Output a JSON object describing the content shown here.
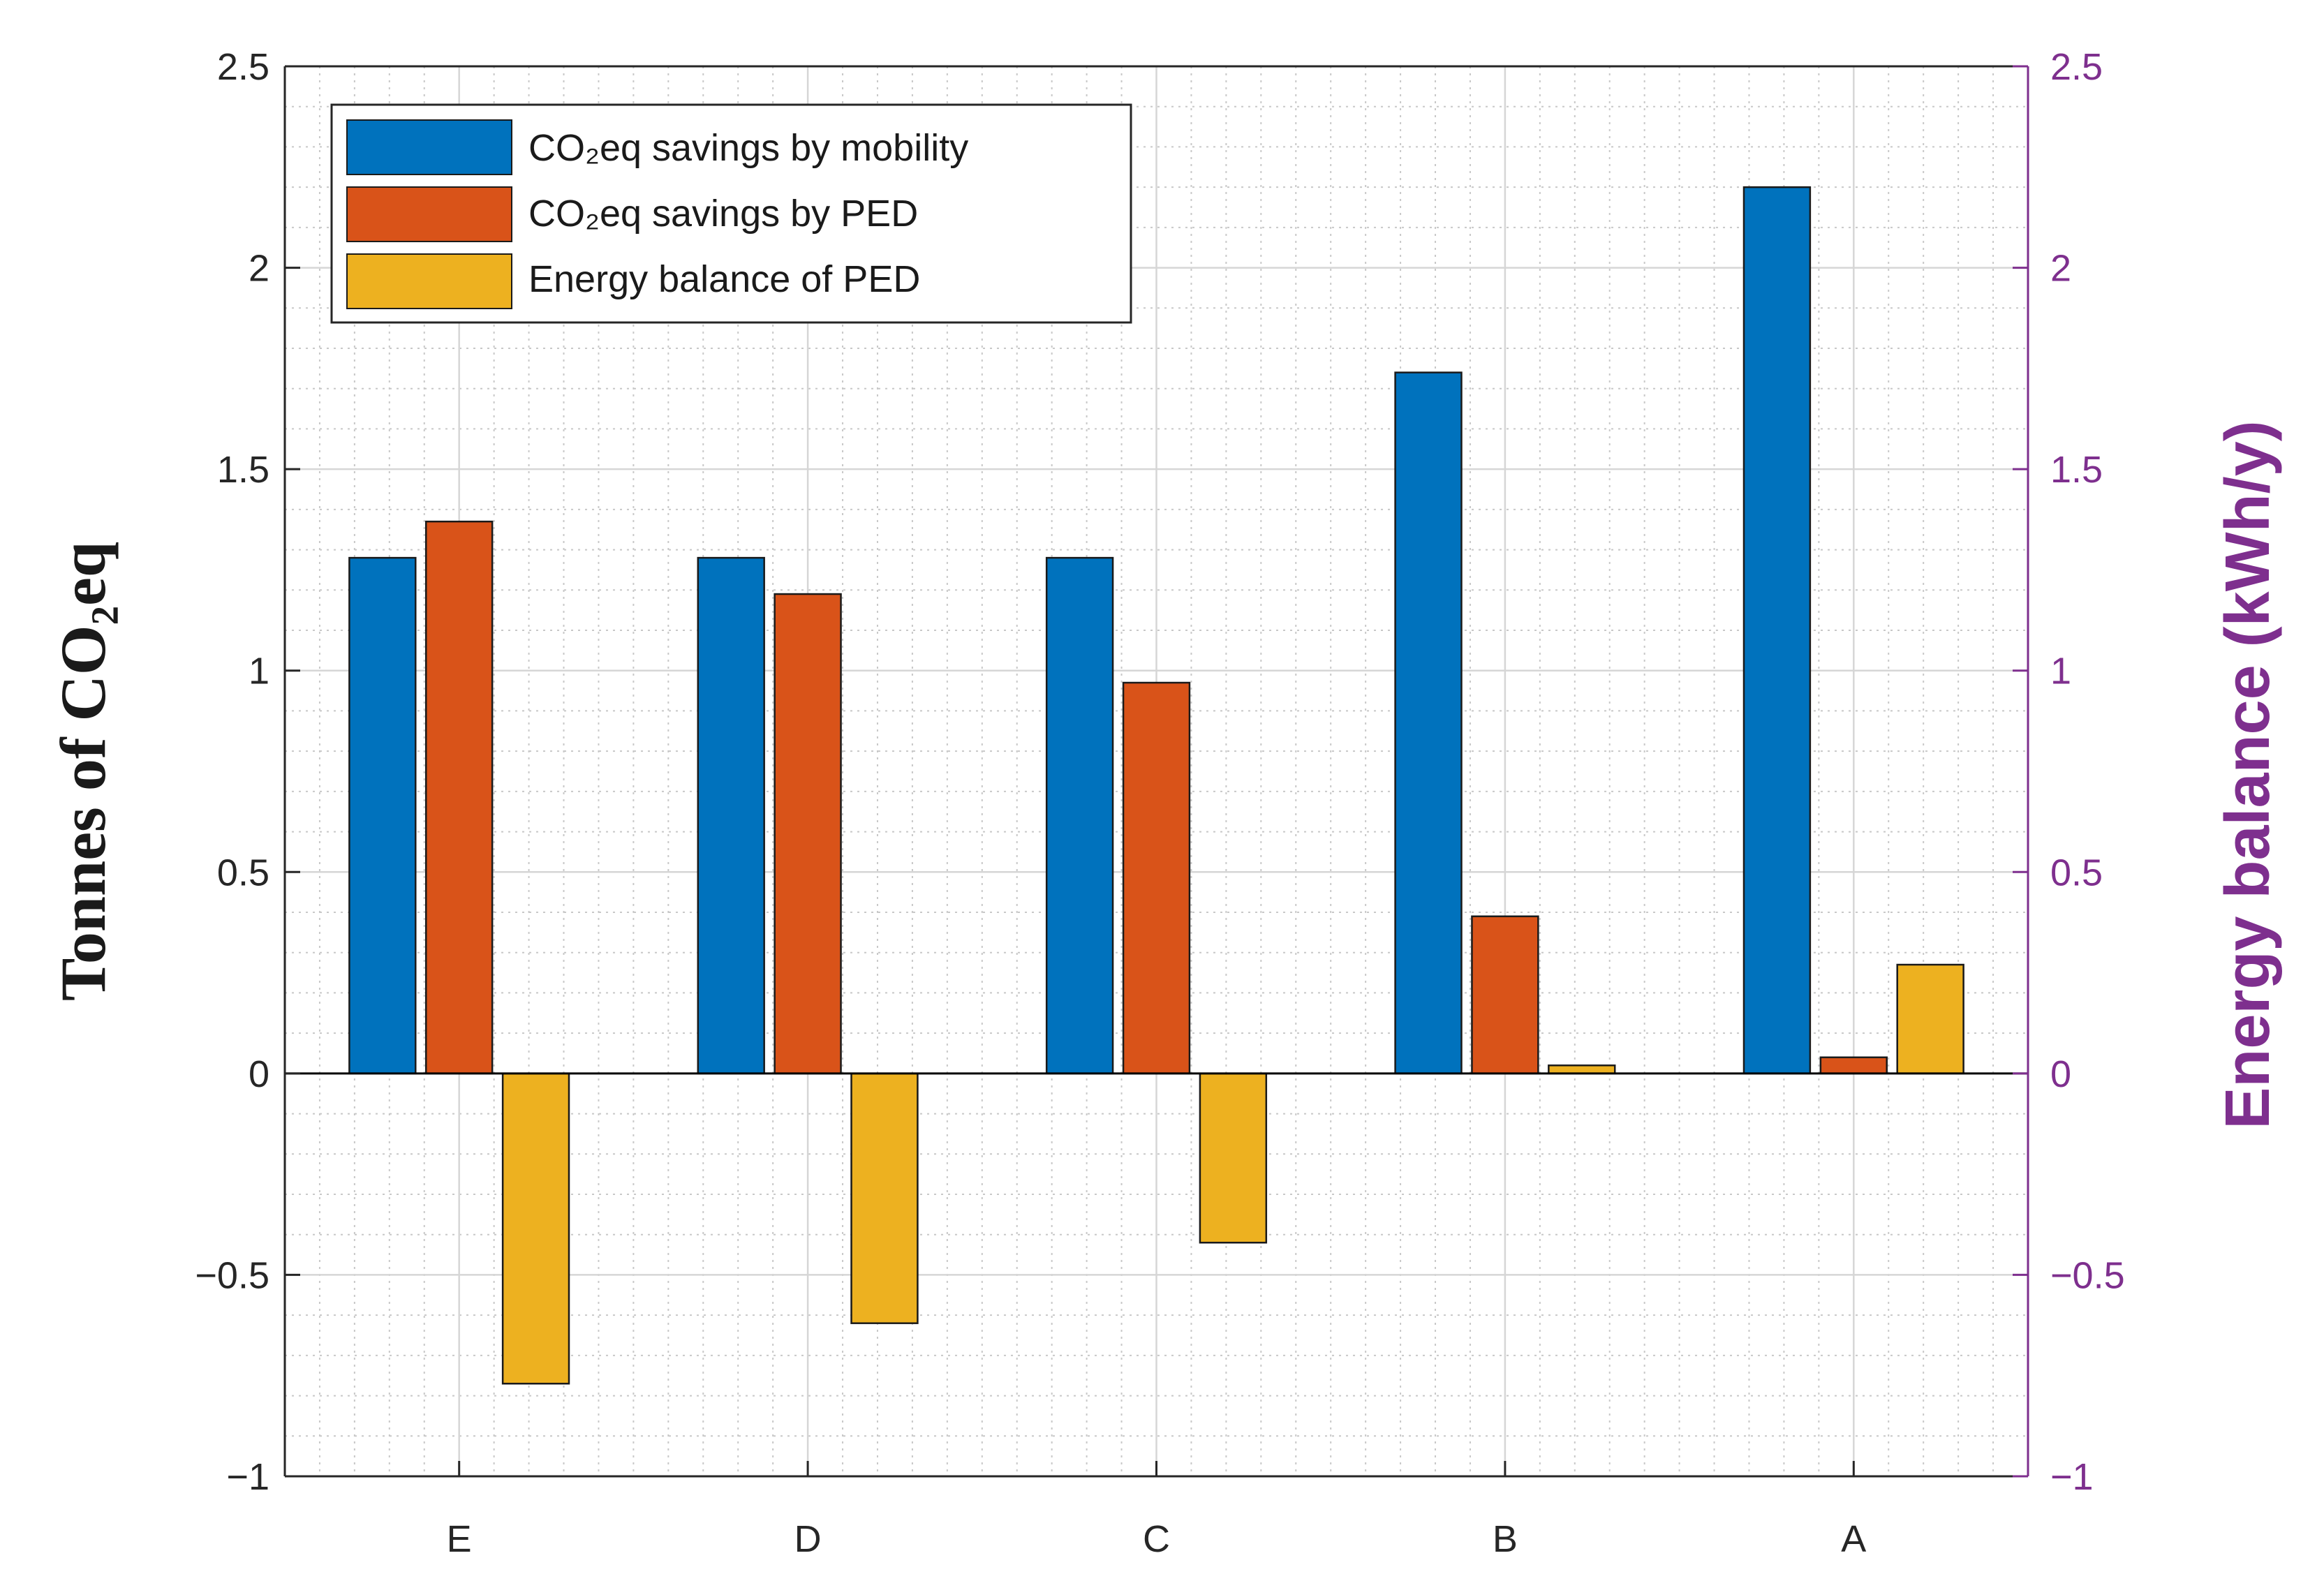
{
  "chart_data": {
    "type": "bar",
    "categories": [
      "E",
      "D",
      "C",
      "B",
      "A"
    ],
    "series": [
      {
        "name": "CO₂eq savings by mobility",
        "axis": "left",
        "color": "#0072bd",
        "values": [
          1.28,
          1.28,
          1.28,
          1.74,
          2.2
        ]
      },
      {
        "name": "CO₂eq savings by PED",
        "axis": "left",
        "color": "#d95319",
        "values": [
          1.37,
          1.19,
          0.97,
          0.39,
          0.04
        ]
      },
      {
        "name": "Energy balance of PED",
        "axis": "right",
        "color": "#edb120",
        "values": [
          -0.77,
          -0.62,
          -0.42,
          0.02,
          0.27
        ]
      }
    ],
    "ylabel": "Tonnes of CO₂eq",
    "ylabel_right": "Energy balance (kWh/y)",
    "ylim": [
      -1,
      2.5
    ],
    "ylim_right": [
      -1,
      2.5
    ],
    "yticks": [
      -1,
      -0.5,
      0,
      0.5,
      1,
      1.5,
      2,
      2.5
    ],
    "ytick_labels": [
      "−1",
      "−0.5",
      "0",
      "0.5",
      "1",
      "1.5",
      "2",
      "2.5"
    ],
    "right_axis_color": "#7e2f8e",
    "grid": true,
    "minor_grid": true,
    "legend_position": "top-left"
  }
}
